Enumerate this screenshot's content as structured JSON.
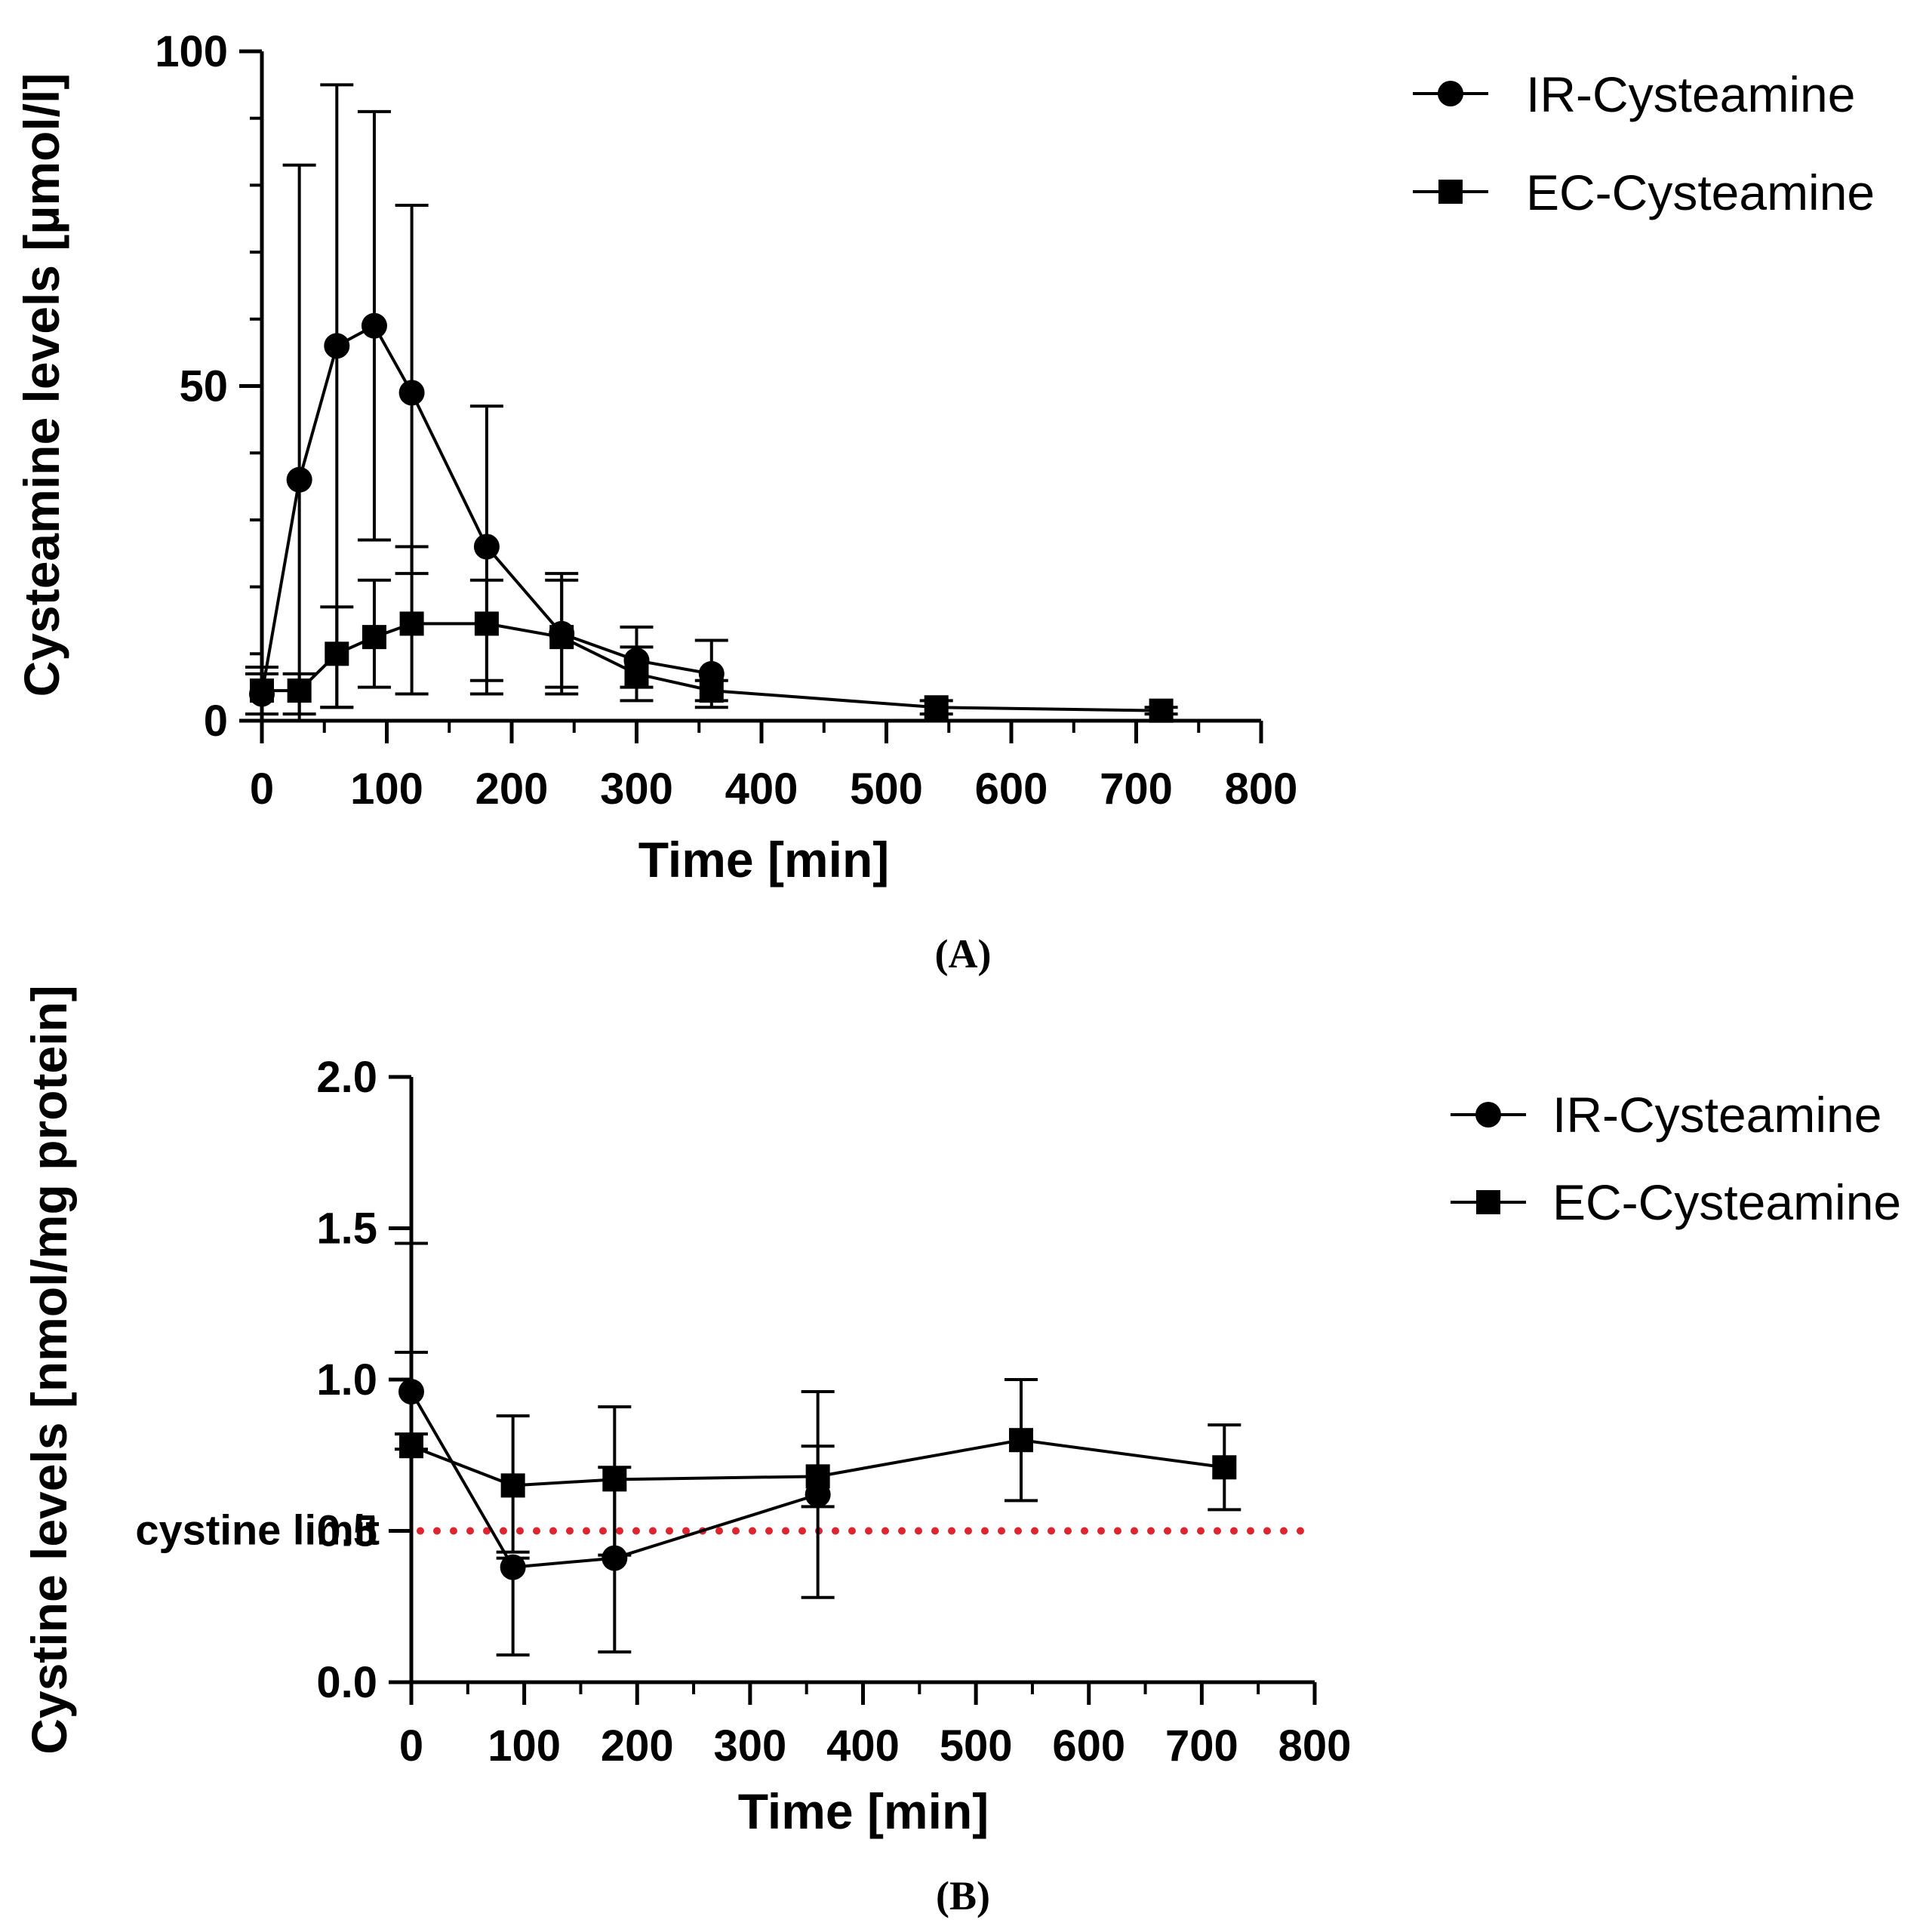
{
  "chart_data": [
    {
      "id": "A",
      "type": "line",
      "panel_label": "(A)",
      "xlabel": "Time [min]",
      "ylabel": "Cysteamine levels [µmol/l]",
      "xlim": [
        0,
        800
      ],
      "ylim": [
        0,
        100
      ],
      "xticks": [
        "0",
        "100",
        "200",
        "300",
        "400",
        "500",
        "600",
        "700",
        "800"
      ],
      "yticks": [
        "0",
        "50",
        "100"
      ],
      "legend_position": "top-right",
      "series": [
        {
          "name": "IR-Cysteamine",
          "marker": "circle",
          "x": [
            0,
            30,
            60,
            90,
            120,
            180,
            240,
            300,
            360
          ],
          "y": [
            4,
            36,
            56,
            59,
            49,
            26,
            13,
            9,
            7
          ],
          "err_low": [
            0,
            0,
            2,
            27,
            22,
            6,
            5,
            5,
            3
          ],
          "err_high": [
            7,
            83,
            95,
            91,
            77,
            47,
            22,
            14,
            12
          ]
        },
        {
          "name": "EC-Cysteamine",
          "marker": "square",
          "x": [
            0,
            30,
            60,
            90,
            120,
            180,
            240,
            300,
            360,
            540,
            720
          ],
          "y": [
            4.5,
            4.5,
            10,
            12.5,
            14.5,
            14.5,
            12.5,
            7,
            4.5,
            2,
            1.5
          ],
          "err_low": [
            1,
            1,
            2,
            5,
            4,
            4,
            4,
            3,
            2,
            1,
            1
          ],
          "err_high": [
            8,
            7,
            17,
            21,
            26,
            21,
            21,
            11,
            6,
            3,
            2
          ]
        }
      ]
    },
    {
      "id": "B",
      "type": "line",
      "panel_label": "(B)",
      "xlabel": "Time [min]",
      "ylabel": "Cystine levels  [nmol/mg protein]",
      "xlim": [
        0,
        800
      ],
      "ylim": [
        0,
        2
      ],
      "xticks": [
        "0",
        "100",
        "200",
        "300",
        "400",
        "500",
        "600",
        "700",
        "800"
      ],
      "yticks": [
        "0.0",
        "0.5",
        "1.0",
        "1.5",
        "2.0"
      ],
      "reference_line": {
        "label": "cystine limit",
        "y": 0.5,
        "color": "#e0242f",
        "style": "dotted"
      },
      "legend_position": "top-right",
      "series": [
        {
          "name": "IR-Cysteamine",
          "marker": "circle",
          "x": [
            0,
            90,
            180,
            360
          ],
          "y": [
            0.96,
            0.38,
            0.41,
            0.62
          ],
          "err_low": [
            0.82,
            0.09,
            0.1,
            0.28
          ],
          "err_high": [
            1.45,
            0.41,
            0.71,
            0.78
          ]
        },
        {
          "name": "EC-Cysteamine",
          "marker": "square",
          "x": [
            0,
            90,
            180,
            360,
            540,
            720
          ],
          "y": [
            0.78,
            0.65,
            0.67,
            0.68,
            0.8,
            0.71
          ],
          "err_low": [
            0.77,
            0.43,
            0.42,
            0.58,
            0.6,
            0.57
          ],
          "err_high": [
            1.09,
            0.88,
            0.91,
            0.96,
            1.0,
            0.85
          ]
        }
      ]
    }
  ]
}
